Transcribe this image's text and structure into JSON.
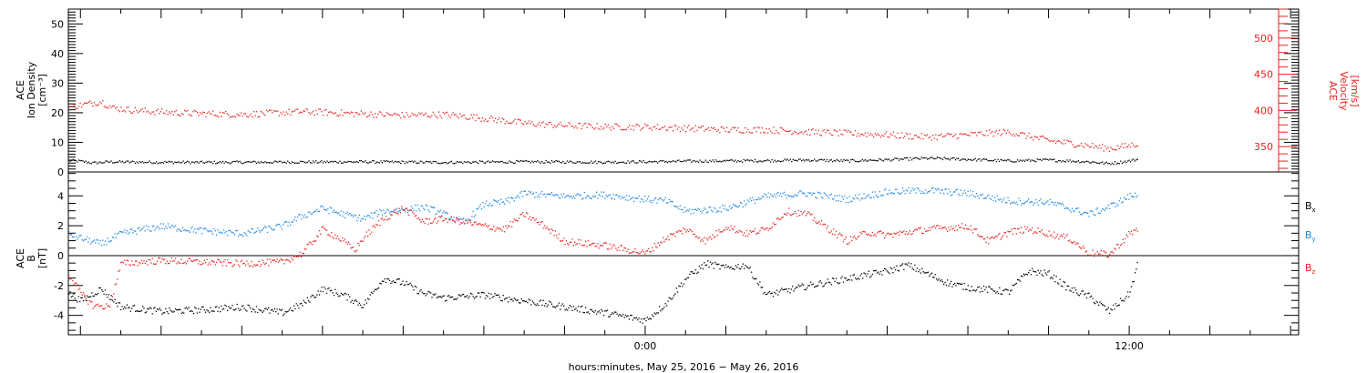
{
  "colors": {
    "black": "#000000",
    "red": "#e8211d",
    "blue": "#1e88e5"
  },
  "chart_data": [
    {
      "type": "scatter",
      "panel": "top",
      "ylabel_lines": [
        "ACE",
        "Ion Density",
        "[cm⁻³]"
      ],
      "ylim": [
        0,
        55
      ],
      "yticks": [
        0,
        10,
        20,
        30,
        40,
        50
      ],
      "y2label_lines": [
        "ACE",
        "Velocity",
        "[km/s]"
      ],
      "y2lim": [
        315,
        540
      ],
      "y2ticks": [
        350,
        400,
        450,
        500
      ],
      "series": [
        {
          "color_key": "black",
          "axis": "left",
          "points": [
            [
              -14.3,
              4
            ],
            [
              -14,
              3.8
            ],
            [
              -13.7,
              3.2
            ],
            [
              -13.3,
              3.6
            ],
            [
              -12.5,
              3.5
            ],
            [
              -11,
              3.4
            ],
            [
              -9,
              3.5
            ],
            [
              -7,
              3.6
            ],
            [
              -5,
              3.4
            ],
            [
              -3,
              3.6
            ],
            [
              -1,
              3.5
            ],
            [
              0,
              3.6
            ],
            [
              1,
              3.8
            ],
            [
              2,
              3.9
            ],
            [
              3,
              4.0
            ],
            [
              4,
              4.2
            ],
            [
              5,
              3.9
            ],
            [
              6,
              4.3
            ],
            [
              7,
              4.8
            ],
            [
              8,
              4.4
            ],
            [
              9,
              3.9
            ],
            [
              10,
              4.2
            ],
            [
              11,
              3.6
            ],
            [
              11.5,
              3.0
            ],
            [
              12,
              3.9
            ],
            [
              12.2,
              4.4
            ]
          ]
        },
        {
          "color_key": "red",
          "axis": "right",
          "points": [
            [
              -14.3,
              405
            ],
            [
              -14,
              408
            ],
            [
              -13.5,
              413
            ],
            [
              -13.2,
              404
            ],
            [
              -12.5,
              400
            ],
            [
              -11.5,
              397
            ],
            [
              -10,
              395
            ],
            [
              -8.5,
              399
            ],
            [
              -7,
              396
            ],
            [
              -6,
              394
            ],
            [
              -5,
              395
            ],
            [
              -4,
              390
            ],
            [
              -3,
              383
            ],
            [
              -2,
              380
            ],
            [
              -1,
              378
            ],
            [
              0,
              378
            ],
            [
              1,
              376
            ],
            [
              2,
              374
            ],
            [
              3,
              374
            ],
            [
              4,
              371
            ],
            [
              5,
              369
            ],
            [
              6,
              367
            ],
            [
              7,
              364
            ],
            [
              8,
              367
            ],
            [
              9,
              371
            ],
            [
              10,
              359
            ],
            [
              11,
              352
            ],
            [
              11.5,
              348
            ],
            [
              12,
              352
            ],
            [
              12.2,
              355
            ]
          ]
        }
      ]
    },
    {
      "type": "scatter",
      "panel": "bottom",
      "ylabel_lines": [
        "ACE",
        "B",
        "[nT]"
      ],
      "ylim": [
        -5.3,
        5.6
      ],
      "yticks": [
        -4,
        -2,
        0,
        2,
        4
      ],
      "xlabel": "hours:minutes, May 25, 2016 − May 26, 2016",
      "xlim": [
        -14.3,
        16.2
      ],
      "xtick_labels": [
        {
          "x": 0,
          "label": "0:00"
        },
        {
          "x": 12,
          "label": "12:00"
        }
      ],
      "legend": [
        {
          "main": "B",
          "sub": "x",
          "color_key": "black"
        },
        {
          "main": "B",
          "sub": "y",
          "color_key": "blue"
        },
        {
          "main": "B",
          "sub": "z",
          "color_key": "red"
        }
      ],
      "series": [
        {
          "color_key": "black",
          "points": [
            [
              -14.3,
              -2.5
            ],
            [
              -14,
              -3.0
            ],
            [
              -13.5,
              -2.2
            ],
            [
              -13,
              -3.4
            ],
            [
              -12,
              -3.7
            ],
            [
              -11,
              -3.6
            ],
            [
              -10,
              -3.4
            ],
            [
              -9,
              -3.8
            ],
            [
              -8.5,
              -3.2
            ],
            [
              -8,
              -2.2
            ],
            [
              -7.5,
              -2.6
            ],
            [
              -7,
              -3.3
            ],
            [
              -6.5,
              -1.5
            ],
            [
              -6,
              -1.8
            ],
            [
              -5.5,
              -2.5
            ],
            [
              -5,
              -2.8
            ],
            [
              -4,
              -2.6
            ],
            [
              -3,
              -3.0
            ],
            [
              -2,
              -3.4
            ],
            [
              -1,
              -3.8
            ],
            [
              0,
              -4.3
            ],
            [
              0.5,
              -3.2
            ],
            [
              1,
              -1.5
            ],
            [
              1.5,
              -0.5
            ],
            [
              2,
              -0.8
            ],
            [
              2.5,
              -0.6
            ],
            [
              3,
              -2.6
            ],
            [
              4,
              -2.0
            ],
            [
              5,
              -1.5
            ],
            [
              6,
              -1.0
            ],
            [
              6.5,
              -0.6
            ],
            [
              7,
              -1.2
            ],
            [
              7.5,
              -1.8
            ],
            [
              8,
              -2.1
            ],
            [
              9,
              -2.4
            ],
            [
              9.5,
              -1.0
            ],
            [
              10,
              -1.2
            ],
            [
              10.5,
              -2.2
            ],
            [
              11,
              -2.7
            ],
            [
              11.5,
              -3.7
            ],
            [
              12,
              -2.5
            ],
            [
              12.2,
              -0.5
            ]
          ]
        },
        {
          "color_key": "blue",
          "points": [
            [
              -14.3,
              1.5
            ],
            [
              -14,
              1.2
            ],
            [
              -13.5,
              0.8
            ],
            [
              -13,
              1.5
            ],
            [
              -12,
              2.0
            ],
            [
              -11,
              1.7
            ],
            [
              -10,
              1.5
            ],
            [
              -9,
              2.0
            ],
            [
              -8.5,
              2.7
            ],
            [
              -8,
              3.2
            ],
            [
              -7.5,
              2.8
            ],
            [
              -7,
              2.5
            ],
            [
              -6.5,
              3.0
            ],
            [
              -6,
              3.1
            ],
            [
              -5.5,
              3.3
            ],
            [
              -5,
              2.8
            ],
            [
              -4.5,
              2.2
            ],
            [
              -4,
              3.5
            ],
            [
              -3.5,
              3.6
            ],
            [
              -3,
              4.2
            ],
            [
              -2,
              4.0
            ],
            [
              -1,
              4.1
            ],
            [
              0,
              3.8
            ],
            [
              0.5,
              3.7
            ],
            [
              1,
              3.0
            ],
            [
              2,
              3.2
            ],
            [
              3,
              4.0
            ],
            [
              4,
              4.2
            ],
            [
              5,
              3.8
            ],
            [
              6,
              4.3
            ],
            [
              7,
              4.4
            ],
            [
              8,
              4.2
            ],
            [
              9,
              3.7
            ],
            [
              10,
              3.6
            ],
            [
              11,
              2.8
            ],
            [
              11.5,
              3.3
            ],
            [
              12,
              4.0
            ],
            [
              12.2,
              4.1
            ]
          ]
        },
        {
          "color_key": "red",
          "points": [
            [
              -14.3,
              -1.2
            ],
            [
              -14,
              -2.5
            ],
            [
              -13.7,
              -3.3
            ],
            [
              -13.3,
              -3.4
            ],
            [
              -13,
              -0.5
            ],
            [
              -12,
              -0.3
            ],
            [
              -11,
              -0.4
            ],
            [
              -10,
              -0.5
            ],
            [
              -9,
              -0.4
            ],
            [
              -8.5,
              0.2
            ],
            [
              -8,
              1.8
            ],
            [
              -7.6,
              1.2
            ],
            [
              -7.2,
              0.4
            ],
            [
              -7,
              1.2
            ],
            [
              -6.5,
              2.5
            ],
            [
              -6,
              3.2
            ],
            [
              -5.5,
              2.3
            ],
            [
              -5,
              2.5
            ],
            [
              -4.5,
              2.3
            ],
            [
              -4,
              2.0
            ],
            [
              -3.5,
              1.8
            ],
            [
              -3,
              2.8
            ],
            [
              -2.5,
              2.0
            ],
            [
              -2,
              1.0
            ],
            [
              -1,
              0.7
            ],
            [
              0,
              0.2
            ],
            [
              0.5,
              1.2
            ],
            [
              1,
              1.8
            ],
            [
              1.5,
              1.0
            ],
            [
              2,
              2.0
            ],
            [
              2.5,
              1.5
            ],
            [
              3,
              1.8
            ],
            [
              3.5,
              3.0
            ],
            [
              4,
              2.8
            ],
            [
              5,
              1.0
            ],
            [
              5.5,
              1.6
            ],
            [
              6,
              1.4
            ],
            [
              7,
              1.8
            ],
            [
              8,
              2.0
            ],
            [
              8.5,
              1.0
            ],
            [
              9,
              1.6
            ],
            [
              9.5,
              1.8
            ],
            [
              10,
              1.5
            ],
            [
              10.5,
              1.2
            ],
            [
              11,
              0.2
            ],
            [
              11.5,
              0.1
            ],
            [
              12,
              1.5
            ],
            [
              12.2,
              1.8
            ]
          ]
        }
      ]
    }
  ]
}
